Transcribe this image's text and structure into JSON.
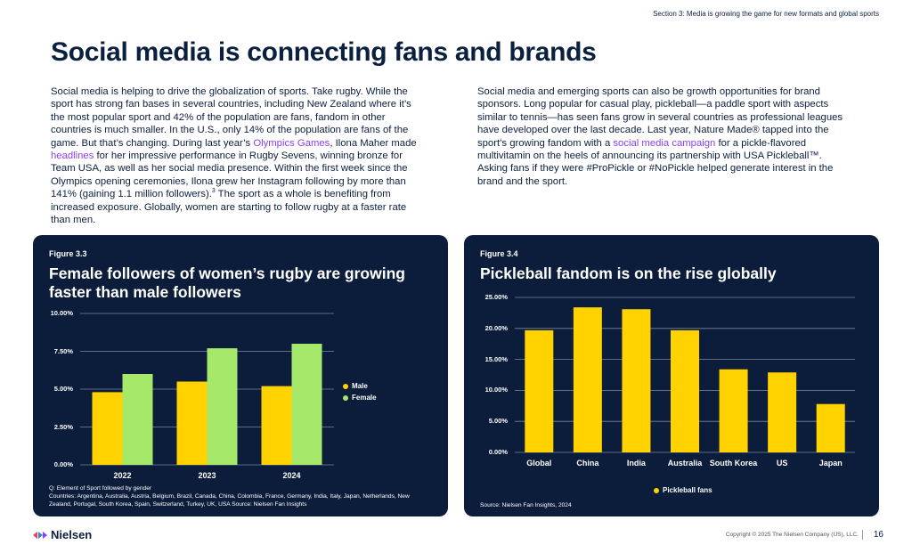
{
  "header": {
    "section": "Section 3: Media is growing the game for new formats and global sports"
  },
  "title": "Social media is connecting fans and brands",
  "columns": [
    [
      {
        "text": "Social media is helping to drive the globalization of sports. Take rugby. While the sport has strong fan bases in several countries, including New Zealand where it’s the most popular sport and 42% of the population are fans, fandom in other countries is much smaller. In the U.S., only 14% of the population are fans of the game. But that’s changing. During last year’s "
      },
      {
        "text": "Olympics Games",
        "style": "link"
      },
      {
        "text": ", Ilona Maher made "
      },
      {
        "text": "headlines",
        "style": "link"
      },
      {
        "text": " for her impressive performance in Rugby Sevens, winning bronze for Team USA, as well as her social media presence. Within the first week since the Olympics opening ceremonies, Ilona grew her Instagram following by more than 141% (gaining 1.1 million followers)."
      },
      {
        "text": "3",
        "style": "sup"
      },
      {
        "text": " The sport as a whole is benefiting from increased exposure. Globally, women are starting to follow rugby at a faster rate than men."
      }
    ],
    [
      {
        "text": "Social media and emerging sports can also be growth opportunities for brand sponsors. Long popular for casual play, pickleball—a paddle sport with aspects similar to tennis—has seen fans grow in several countries as professional leagues have developed over the last decade. Last year, Nature Made® tapped into the sport’s growing fandom with a "
      },
      {
        "text": "social media campaign",
        "style": "link"
      },
      {
        "text": " for a pickle-flavored multivitamin on the heels of announcing its partnership with USA Pickleball™. Asking fans if they were #ProPickle or #NoPickle helped generate interest in the brand and the sport."
      }
    ]
  ],
  "figures": [
    {
      "label": "Figure 3.3",
      "notes": [
        "Q: Element of Sport followed by gender",
        "Countries: Argentina, Australia, Austria, Belgium, Brazil, Canada, China, Colombia, France, Germany, India, Italy, Japan, Netherlands, New Zealand, Portugal, South Korea, Spain, Switzerland, Turkey, UK, USA Source: Nielsen Fan Insights"
      ]
    },
    {
      "label": "Figure 3.4",
      "notes": [
        "Source: Nielsen Fan Insights, 2024"
      ]
    }
  ],
  "chart_data": [
    {
      "type": "bar",
      "title": "Female followers of women’s rugby are growing faster than male followers",
      "categories": [
        "2022",
        "2023",
        "2024"
      ],
      "series": [
        {
          "name": "Male",
          "color": "#ffd200",
          "values": [
            4.8,
            5.5,
            5.2
          ]
        },
        {
          "name": "Female",
          "color": "#a6e86a",
          "values": [
            6.0,
            7.7,
            8.0
          ]
        }
      ],
      "ylim": [
        0,
        10
      ],
      "yticks": [
        {
          "value": 0,
          "label": "0.00%"
        },
        {
          "value": 2.5,
          "label": "2.50%"
        },
        {
          "value": 5,
          "label": "5.00%"
        },
        {
          "value": 7.5,
          "label": "7.50%"
        },
        {
          "value": 10,
          "label": "10.00%"
        }
      ],
      "grid": true,
      "legend": "right"
    },
    {
      "type": "bar",
      "title": "Pickleball fandom is on the rise globally",
      "categories": [
        "Global",
        "China",
        "India",
        "Australia",
        "South Korea",
        "US",
        "Japan"
      ],
      "series": [
        {
          "name": "Pickleball fans",
          "color": "#ffd200",
          "values": [
            19.7,
            23.4,
            23.1,
            19.7,
            13.4,
            12.9,
            7.8
          ]
        }
      ],
      "ylim": [
        0,
        25
      ],
      "yticks": [
        {
          "value": 0,
          "label": "0.00%"
        },
        {
          "value": 5,
          "label": "5.00%"
        },
        {
          "value": 10,
          "label": "10.00%"
        },
        {
          "value": 15,
          "label": "15.00%"
        },
        {
          "value": 20,
          "label": "20.00%"
        },
        {
          "value": 25,
          "label": "25.00%"
        }
      ],
      "grid": true,
      "legend": "bottom"
    }
  ],
  "footer": {
    "logo": "Nielsen",
    "copyright": "Copyright © 2025 The Nielsen Company (US), LLC.",
    "page": 16
  }
}
